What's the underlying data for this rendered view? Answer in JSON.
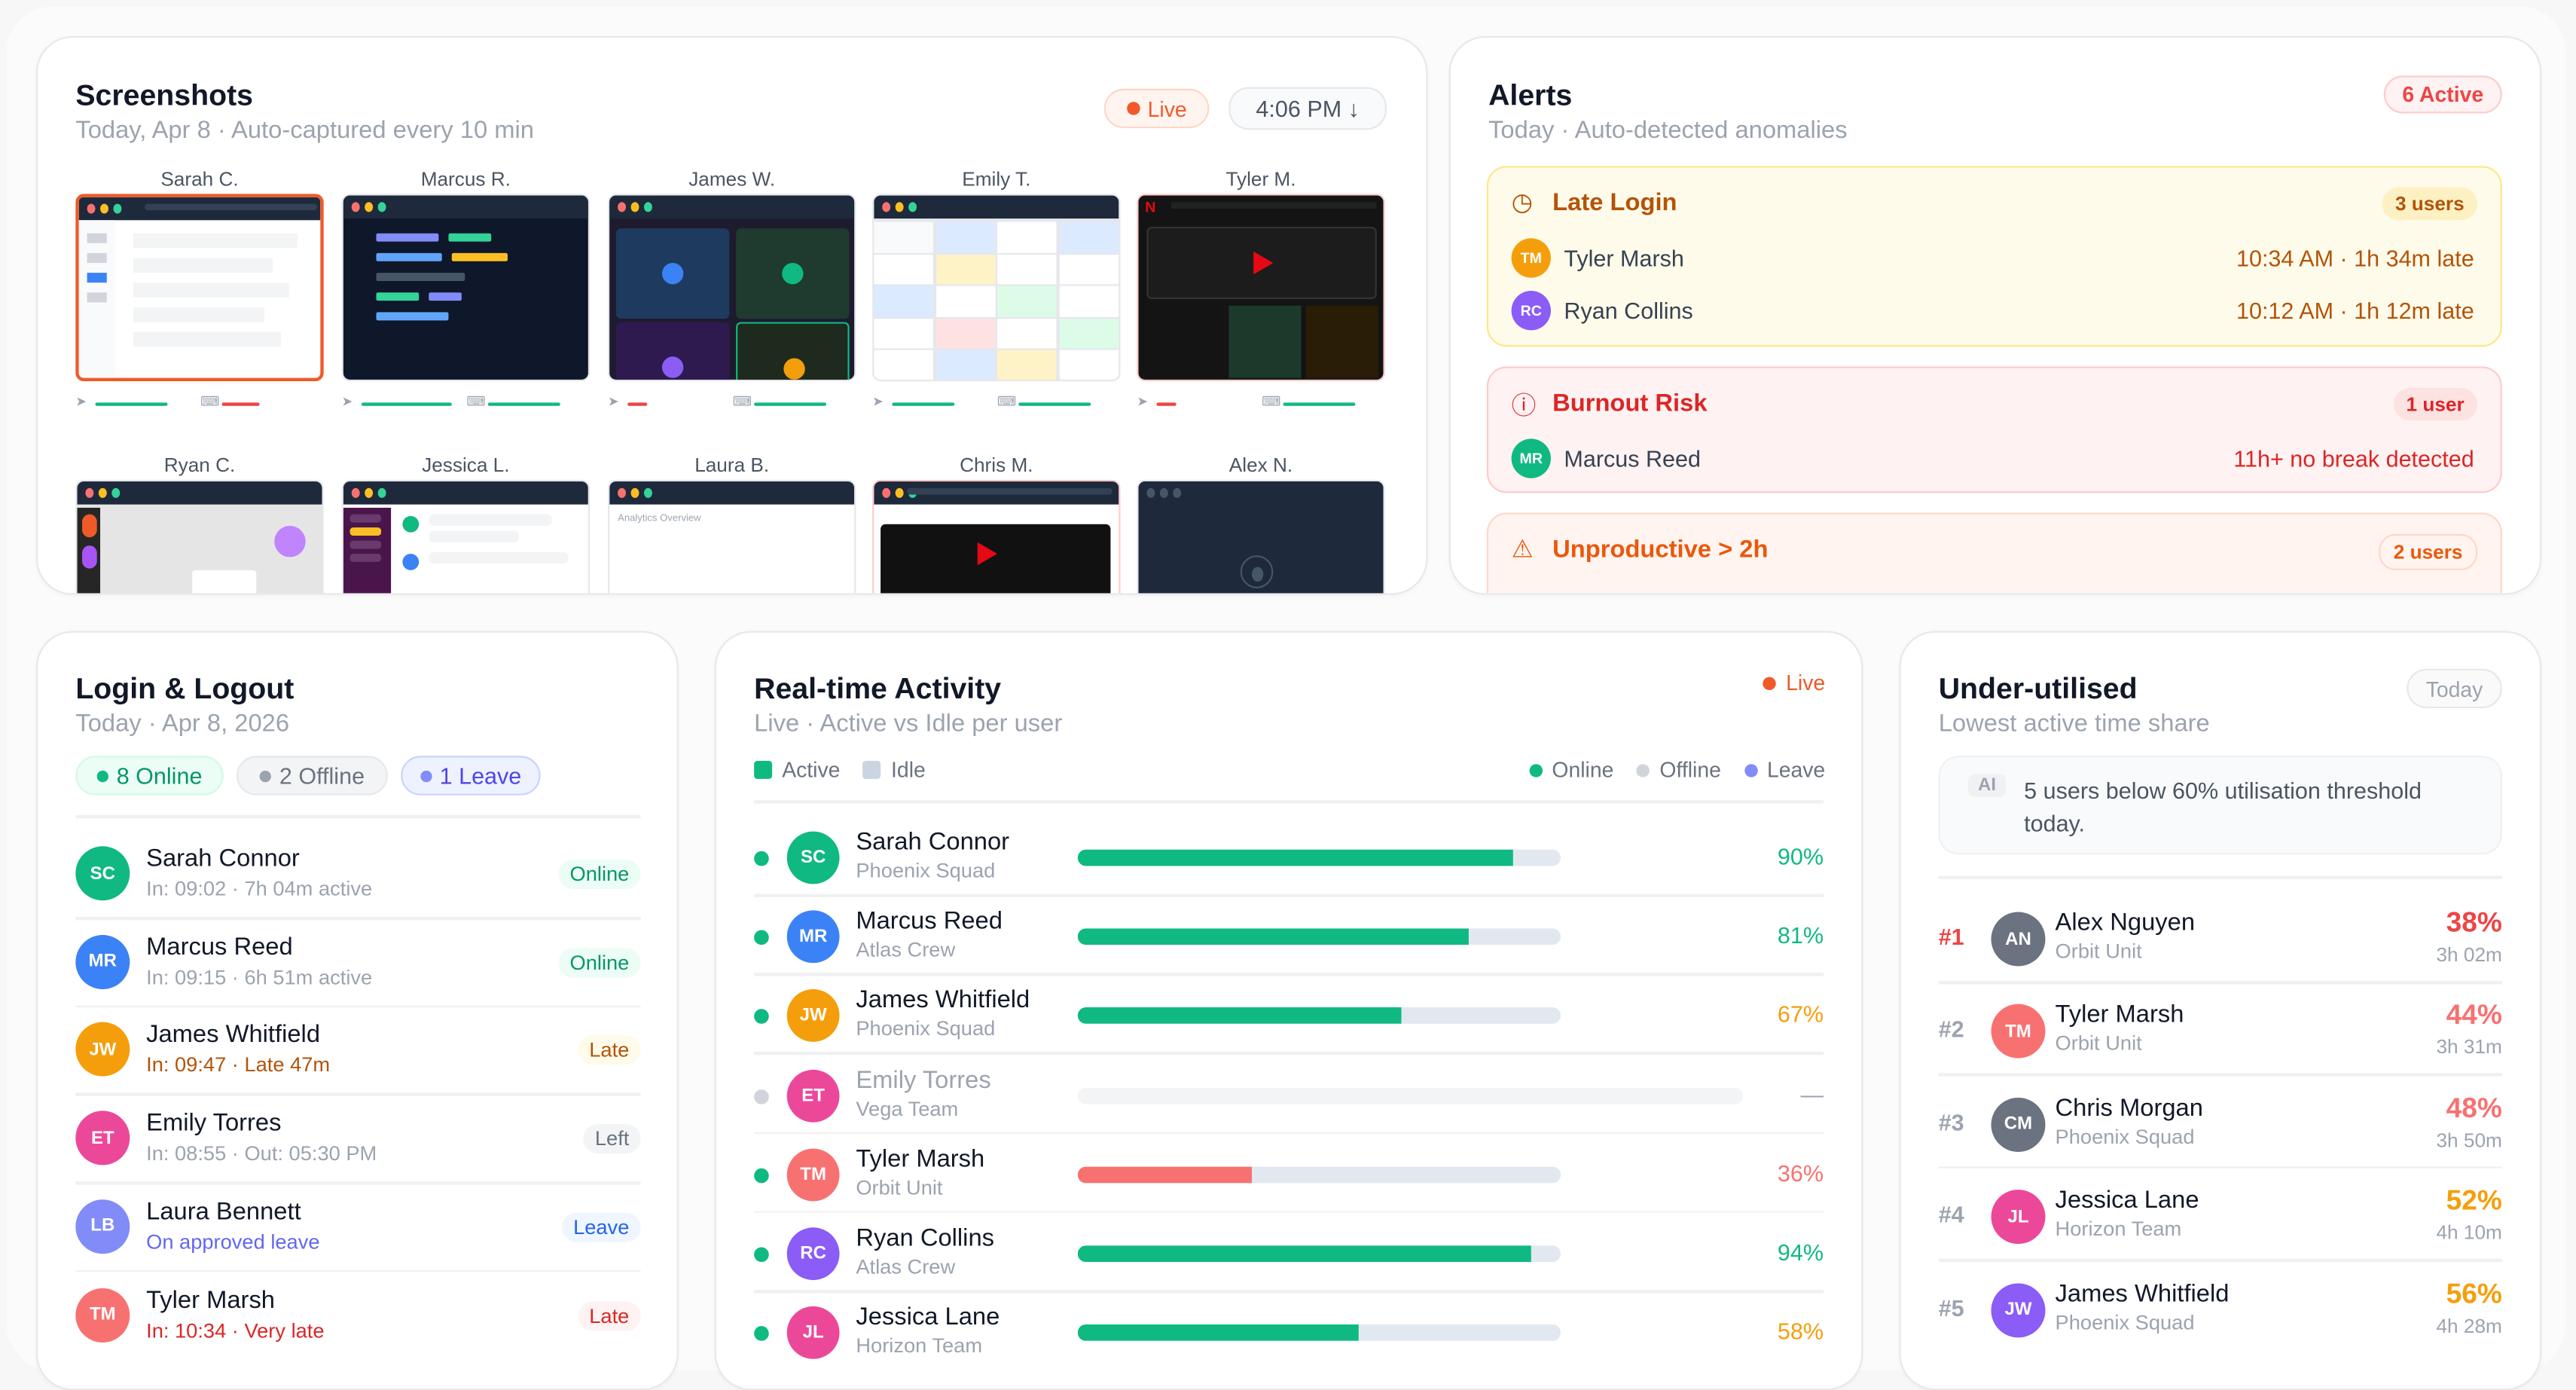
{
  "colors": {
    "accent_green": "#10b981",
    "live": "#f05a28",
    "late": "#b45309",
    "danger": "#dc2626",
    "leave": "#6366f1"
  },
  "screenshots": {
    "title": "Screenshots",
    "subtitle": "Today, Apr 8 · Auto-captured every 10 min",
    "live_label": "Live",
    "time_label": "4:06 PM ↓",
    "items": [
      {
        "name": "Sarah C.",
        "type": "doc",
        "border": "#f05a28",
        "mouse": 0.75,
        "mouse_status": "good",
        "keyboard": 0.4,
        "keyboard_status": "low"
      },
      {
        "name": "Marcus R.",
        "type": "code",
        "border": "#e5e7eb",
        "mouse": 0.95,
        "mouse_status": "good",
        "keyboard": 0.75,
        "keyboard_status": "good"
      },
      {
        "name": "James W.",
        "type": "call",
        "border": "#e5e7eb",
        "mouse": 0.2,
        "mouse_status": "low",
        "keyboard": 0.75,
        "keyboard_status": "good"
      },
      {
        "name": "Emily T.",
        "type": "sheet",
        "border": "#e5e7eb",
        "mouse": 0.65,
        "mouse_status": "good",
        "keyboard": 0.75,
        "keyboard_status": "good"
      },
      {
        "name": "Tyler M.",
        "type": "netflix",
        "border": "#fecaca",
        "mouse": 0.2,
        "mouse_status": "low",
        "keyboard": 0.75,
        "keyboard_status": "good"
      },
      {
        "name": "Ryan C.",
        "type": "design",
        "border": "#e5e7eb"
      },
      {
        "name": "Jessica L.",
        "type": "chat",
        "border": "#e5e7eb"
      },
      {
        "name": "Laura B.",
        "type": "analytics",
        "border": "#e5e7eb",
        "caption": "Analytics Overview"
      },
      {
        "name": "Chris M.",
        "type": "video",
        "border": "#fecaca"
      },
      {
        "name": "Alex N.",
        "type": "idle",
        "border": "#e5e7eb"
      }
    ]
  },
  "alerts": {
    "title": "Alerts",
    "subtitle": "Today · Auto-detected anomalies",
    "active_label": "6 Active",
    "groups": [
      {
        "title": "Late Login",
        "icon": "clock-icon",
        "count": "3 users",
        "bg": "#fefbea",
        "border": "#fde68a",
        "color": "#b45309",
        "count_bg": "#fdf1c4",
        "users": [
          {
            "initials": "TM",
            "name": "Tyler Marsh",
            "color": "#f59e0b",
            "detail": "10:34 AM · 1h 34m late"
          },
          {
            "initials": "RC",
            "name": "Ryan Collins",
            "color": "#8b5cf6",
            "detail": "10:12 AM · 1h 12m late"
          }
        ]
      },
      {
        "title": "Burnout Risk",
        "icon": "alert-circle-icon",
        "count": "1 user",
        "bg": "#fef2f2",
        "border": "#fecaca",
        "color": "#dc2626",
        "count_bg": "#fde2e2",
        "users": [
          {
            "initials": "MR",
            "name": "Marcus Reed",
            "color": "#10b981",
            "detail": "11h+ no break detected"
          }
        ]
      },
      {
        "title": "Unproductive > 2h",
        "icon": "warning-triangle-icon",
        "count": "2 users",
        "bg": "#fff4f0",
        "border": "#fed7c7",
        "color": "#ea580c",
        "count_bg": "#fff4f0",
        "users": []
      }
    ]
  },
  "login": {
    "title": "Login & Logout",
    "subtitle": "Today · Apr 8, 2026",
    "pills": [
      {
        "label": "8 Online",
        "color": "#10b981",
        "text": "#059669",
        "bg": "#ecfdf5",
        "border": "#d1fae5"
      },
      {
        "label": "2 Offline",
        "color": "#9ca3af",
        "text": "#6b7280",
        "bg": "#f3f4f6",
        "border": "#e5e7eb"
      },
      {
        "label": "1 Leave",
        "color": "#818cf8",
        "text": "#4f46e5",
        "bg": "#eef2ff",
        "border": "#c7d2fe"
      }
    ],
    "rows": [
      {
        "initials": "SC",
        "name": "Sarah Connor",
        "detail": "In: 09:02 · 7h 04m active",
        "status": "Online",
        "color": "#10b981",
        "detail_color": "#9ca3af",
        "badge_text": "#059669",
        "badge_bg": "#ecfdf5"
      },
      {
        "initials": "MR",
        "name": "Marcus Reed",
        "detail": "In: 09:15 · 6h 51m active",
        "status": "Online",
        "color": "#3b82f6",
        "detail_color": "#9ca3af",
        "badge_text": "#059669",
        "badge_bg": "#ecfdf5"
      },
      {
        "initials": "JW",
        "name": "James Whitfield",
        "detail": "In: 09:47 · Late 47m",
        "status": "Late",
        "color": "#f59e0b",
        "detail_color": "#b45309",
        "badge_text": "#b45309",
        "badge_bg": "#fefbea"
      },
      {
        "initials": "ET",
        "name": "Emily Torres",
        "detail": "In: 08:55 · Out: 05:30 PM",
        "status": "Left",
        "color": "#ec4899",
        "detail_color": "#9ca3af",
        "badge_text": "#6b7280",
        "badge_bg": "#f3f4f6"
      },
      {
        "initials": "LB",
        "name": "Laura Bennett",
        "detail": "On approved leave",
        "status": "Leave",
        "color": "#818cf8",
        "detail_color": "#6366f1",
        "badge_text": "#2563eb",
        "badge_bg": "#eff6ff"
      },
      {
        "initials": "TM",
        "name": "Tyler Marsh",
        "detail": "In: 10:34 · Very late",
        "status": "Late",
        "color": "#f87171",
        "detail_color": "#dc2626",
        "badge_text": "#dc2626",
        "badge_bg": "#fef2f2"
      }
    ]
  },
  "realtime": {
    "title": "Real-time Activity",
    "subtitle": "Live · Active vs Idle per user",
    "live_label": "Live",
    "legend": {
      "active": "Active",
      "idle": "Idle",
      "online": "Online",
      "offline": "Offline",
      "leave": "Leave"
    },
    "rows": [
      {
        "initials": "SC",
        "name": "Sarah Connor",
        "team": "Phoenix Squad",
        "color": "#10b981",
        "online": true,
        "active": 90,
        "pct": "90%",
        "bar": "#10b981",
        "pct_color": "#10b981"
      },
      {
        "initials": "MR",
        "name": "Marcus Reed",
        "team": "Atlas Crew",
        "color": "#3b82f6",
        "online": true,
        "active": 81,
        "pct": "81%",
        "bar": "#10b981",
        "pct_color": "#10b981"
      },
      {
        "initials": "JW",
        "name": "James Whitfield",
        "team": "Phoenix Squad",
        "color": "#f59e0b",
        "online": true,
        "active": 67,
        "pct": "67%",
        "bar": "#10b981",
        "pct_color": "#f59e0b"
      },
      {
        "initials": "ET",
        "name": "Emily Torres",
        "team": "Vega Team",
        "color": "#ec4899",
        "online": false,
        "active": null,
        "pct": "—",
        "bar": "#10b981",
        "pct_color": "#9ca3af"
      },
      {
        "initials": "TM",
        "name": "Tyler Marsh",
        "team": "Orbit Unit",
        "color": "#f87171",
        "online": true,
        "active": 36,
        "pct": "36%",
        "bar": "#f87171",
        "pct_color": "#f87171"
      },
      {
        "initials": "RC",
        "name": "Ryan Collins",
        "team": "Atlas Crew",
        "color": "#8b5cf6",
        "online": true,
        "active": 94,
        "pct": "94%",
        "bar": "#10b981",
        "pct_color": "#10b981"
      },
      {
        "initials": "JL",
        "name": "Jessica Lane",
        "team": "Horizon Team",
        "color": "#ec4899",
        "online": true,
        "active": 58,
        "pct": "58%",
        "bar": "#10b981",
        "pct_color": "#f59e0b"
      }
    ]
  },
  "underutilised": {
    "title": "Under-utilised",
    "subtitle": "Lowest active time share",
    "period": "Today",
    "ai_tag": "AI",
    "ai_text": "5 users below 60% utilisation threshold today.",
    "rows": [
      {
        "rank": "#1",
        "initials": "AN",
        "name": "Alex Nguyen",
        "team": "Orbit Unit",
        "pct": "38%",
        "time": "3h 02m",
        "color": "#6b7280",
        "pct_color": "#ef4444",
        "rank_color": "#ef4444"
      },
      {
        "rank": "#2",
        "initials": "TM",
        "name": "Tyler Marsh",
        "team": "Orbit Unit",
        "pct": "44%",
        "time": "3h 31m",
        "color": "#f87171",
        "pct_color": "#f87171",
        "rank_color": "#9ca3af"
      },
      {
        "rank": "#3",
        "initials": "CM",
        "name": "Chris Morgan",
        "team": "Phoenix Squad",
        "pct": "48%",
        "time": "3h 50m",
        "color": "#6b7280",
        "pct_color": "#f87171",
        "rank_color": "#9ca3af"
      },
      {
        "rank": "#4",
        "initials": "JL",
        "name": "Jessica Lane",
        "team": "Horizon Team",
        "pct": "52%",
        "time": "4h 10m",
        "color": "#ec4899",
        "pct_color": "#f59e0b",
        "rank_color": "#9ca3af"
      },
      {
        "rank": "#5",
        "initials": "JW",
        "name": "James Whitfield",
        "team": "Phoenix Squad",
        "pct": "56%",
        "time": "4h 28m",
        "color": "#8b5cf6",
        "pct_color": "#f59e0b",
        "rank_color": "#9ca3af"
      }
    ]
  }
}
